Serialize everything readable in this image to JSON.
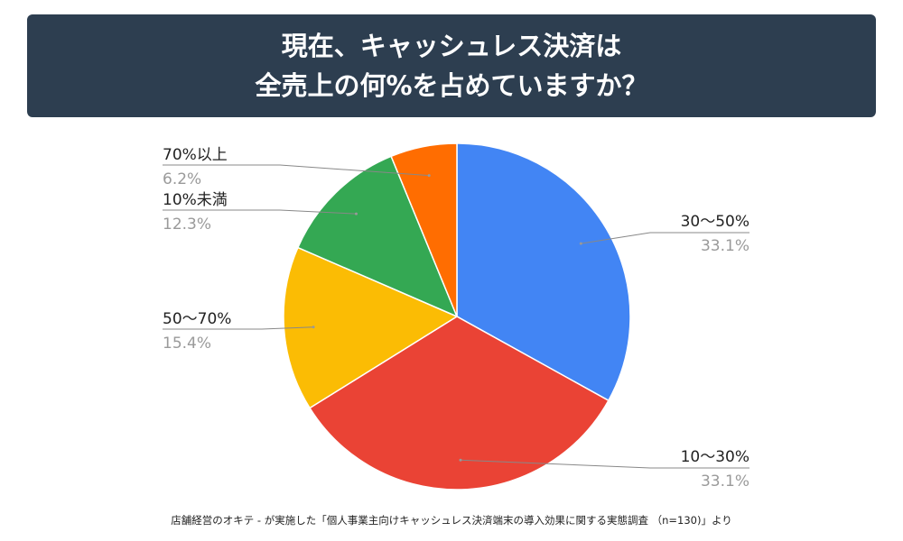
{
  "title": {
    "line1": "現在、キャッシュレス決済は",
    "line2": "全売上の何%を占めていますか？"
  },
  "chart_data": {
    "type": "pie",
    "start_angle": "12 o'clock, clockwise",
    "slices": [
      {
        "label": "30〜50%",
        "value": 33.1,
        "value_label": "33.1%",
        "color": "#4285f4"
      },
      {
        "label": "10〜30%",
        "value": 33.1,
        "value_label": "33.1%",
        "color": "#ea4335"
      },
      {
        "label": "50〜70%",
        "value": 15.4,
        "value_label": "15.4%",
        "color": "#fbbc04"
      },
      {
        "label": "10%未満",
        "value": 12.3,
        "value_label": "12.3%",
        "color": "#34a853"
      },
      {
        "label": "70%以上",
        "value": 6.2,
        "value_label": "6.2%",
        "color": "#ff6d01"
      }
    ]
  },
  "footer": "店舗経営のオキテ - が実施した「個人事業主向けキャッシュレス決済端末の導入効果に関する実態調査 （n=130)」より"
}
